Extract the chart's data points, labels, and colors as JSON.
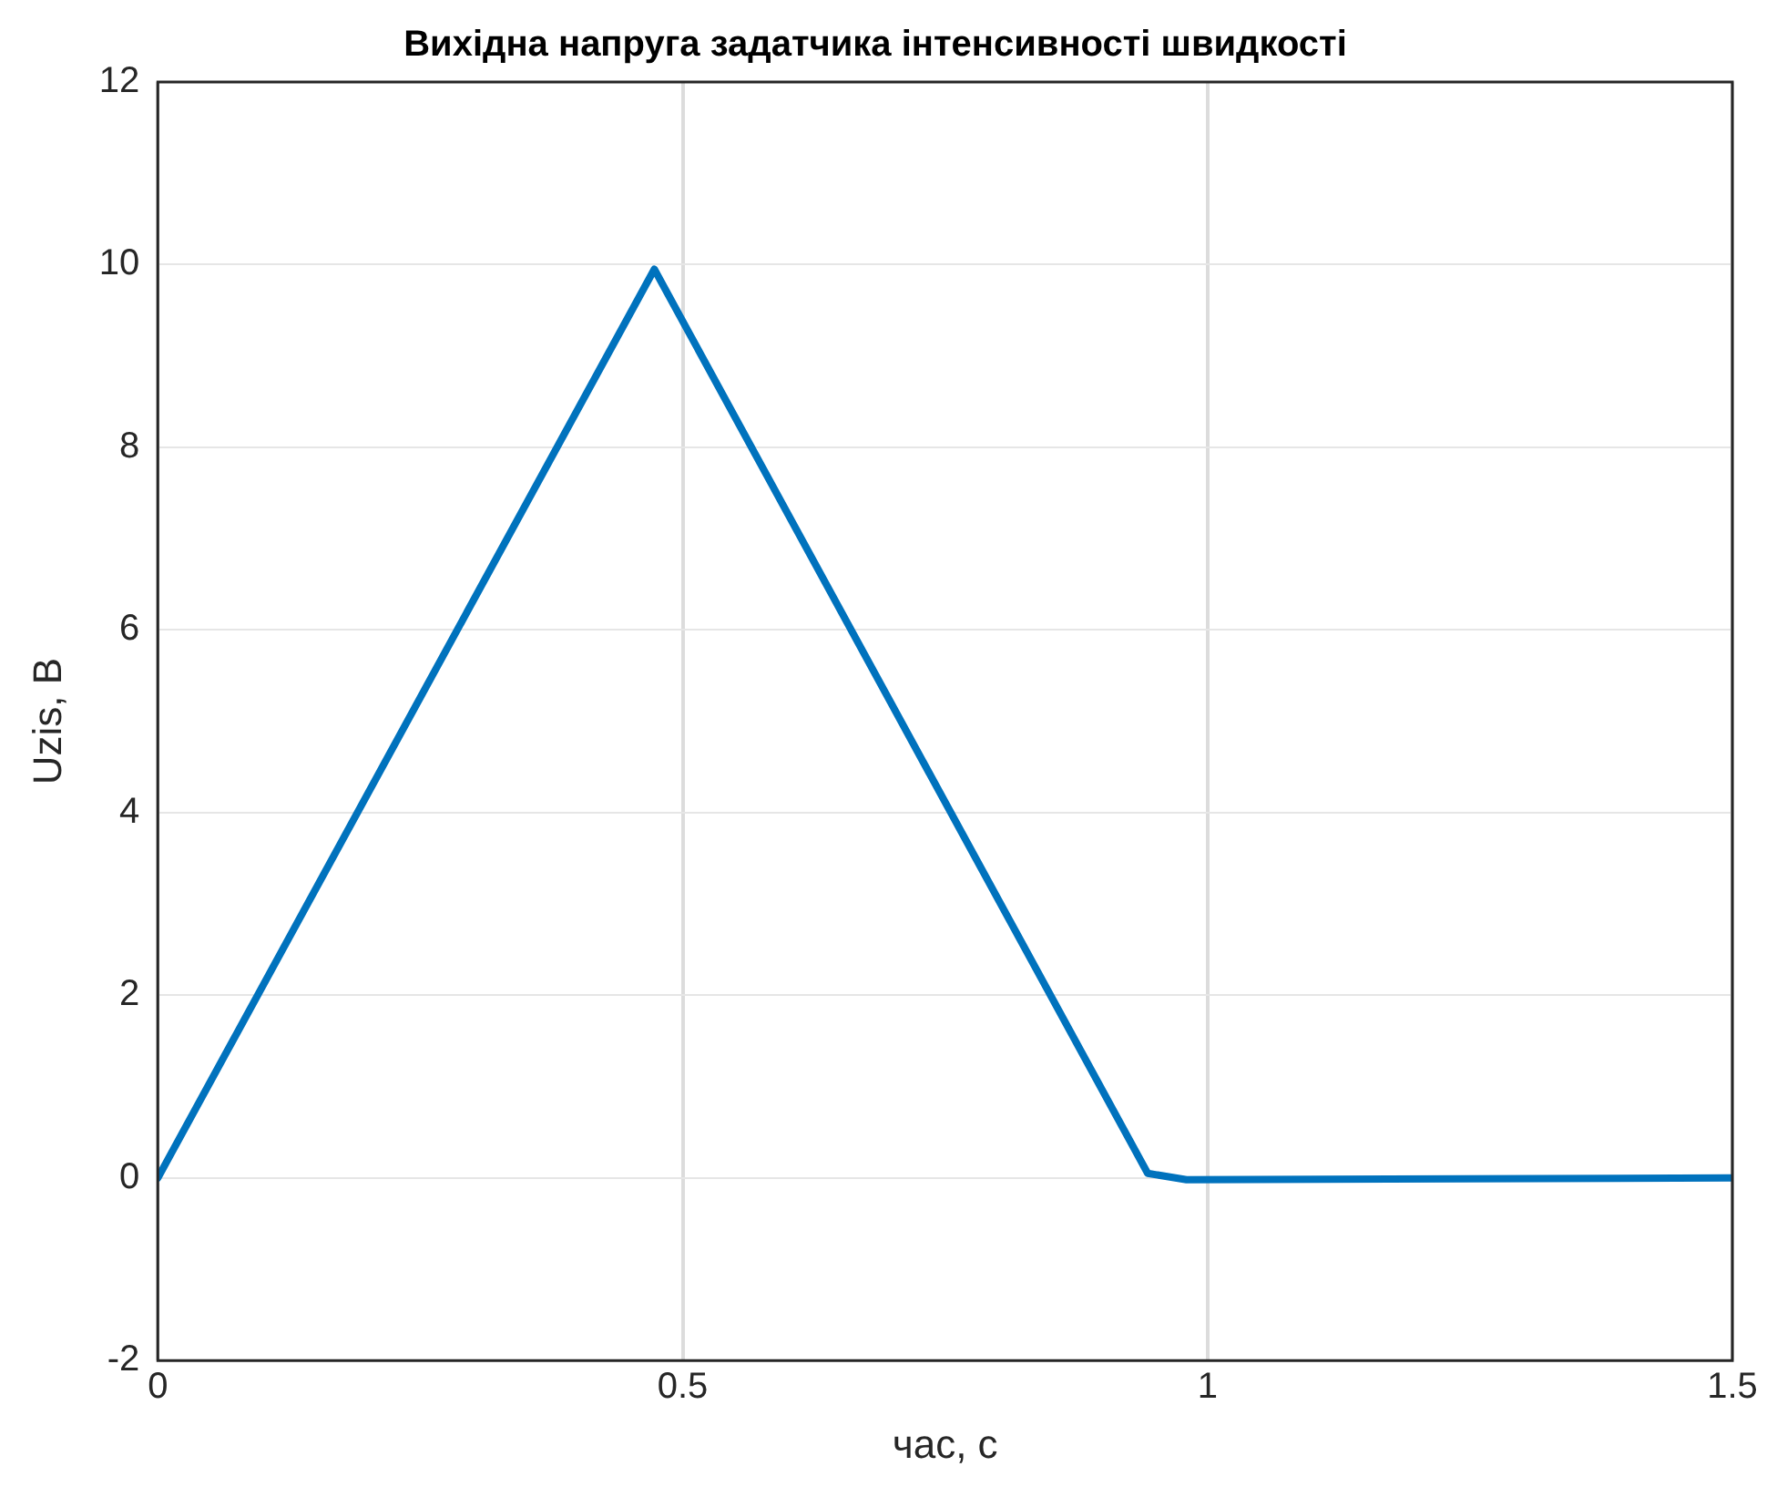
{
  "chart_data": {
    "type": "line",
    "title": "Вихідна напруга задатчика інтенсивності швидкості",
    "xlabel": "час, с",
    "ylabel": "Uzis, В",
    "series": [
      {
        "color": "#0072bd",
        "x": [
          0,
          0.473,
          0.943,
          0.98,
          1.5
        ],
        "values": [
          0,
          9.95,
          0.05,
          -0.02,
          0
        ]
      }
    ],
    "xlim": [
      0,
      1.5
    ],
    "xticks": [
      0,
      0.5,
      1,
      1.5
    ],
    "ylim": [
      -2,
      12
    ],
    "yticks": [
      -2,
      0,
      2,
      4,
      6,
      8,
      10,
      12
    ],
    "grid": true,
    "legend": false,
    "marker": "none",
    "line_style": "solid"
  }
}
